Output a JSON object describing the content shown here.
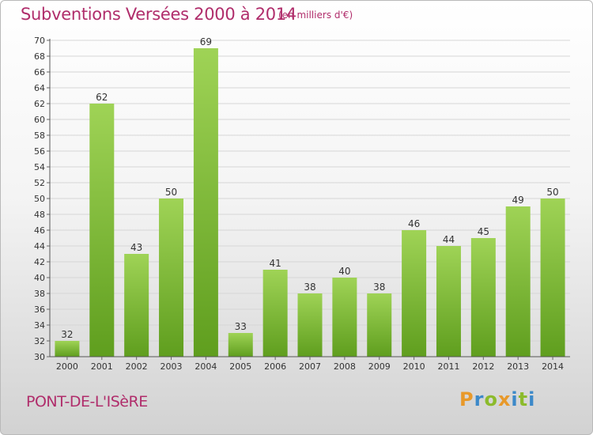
{
  "header": {
    "title": "Subventions Versées 2000 à 2014",
    "unit_note": "(en milliers d'€)"
  },
  "footer": {
    "place_name": "PONT-DE-L'ISèRE",
    "logo_text": "Proxiti",
    "logo_letters": [
      {
        "ch": "P",
        "color": "#e8992a"
      },
      {
        "ch": "r",
        "color": "#3c89c9"
      },
      {
        "ch": "o",
        "color": "#8cbb2c"
      },
      {
        "ch": "x",
        "color": "#e8992a"
      },
      {
        "ch": "i",
        "color": "#3c89c9"
      },
      {
        "ch": "t",
        "color": "#8cbb2c"
      },
      {
        "ch": "i",
        "color": "#3c89c9"
      }
    ]
  },
  "chart_data": {
    "type": "bar",
    "title": "Subventions Versées 2000 à 2014",
    "subtitle": "(en milliers d'€)",
    "xlabel": "",
    "ylabel": "",
    "categories": [
      "2000",
      "2001",
      "2002",
      "2003",
      "2004",
      "2005",
      "2006",
      "2007",
      "2008",
      "2009",
      "2010",
      "2011",
      "2012",
      "2013",
      "2014"
    ],
    "values": [
      32,
      62,
      43,
      50,
      69,
      33,
      41,
      38,
      40,
      38,
      46,
      44,
      45,
      49,
      50
    ],
    "ylim": [
      30,
      70
    ],
    "ytick_step": 2,
    "grid": true,
    "legend": "none",
    "bar_color_top": "#9fd356",
    "bar_color_bottom": "#5f9e1e",
    "grid_color": "#d6d6d6"
  }
}
